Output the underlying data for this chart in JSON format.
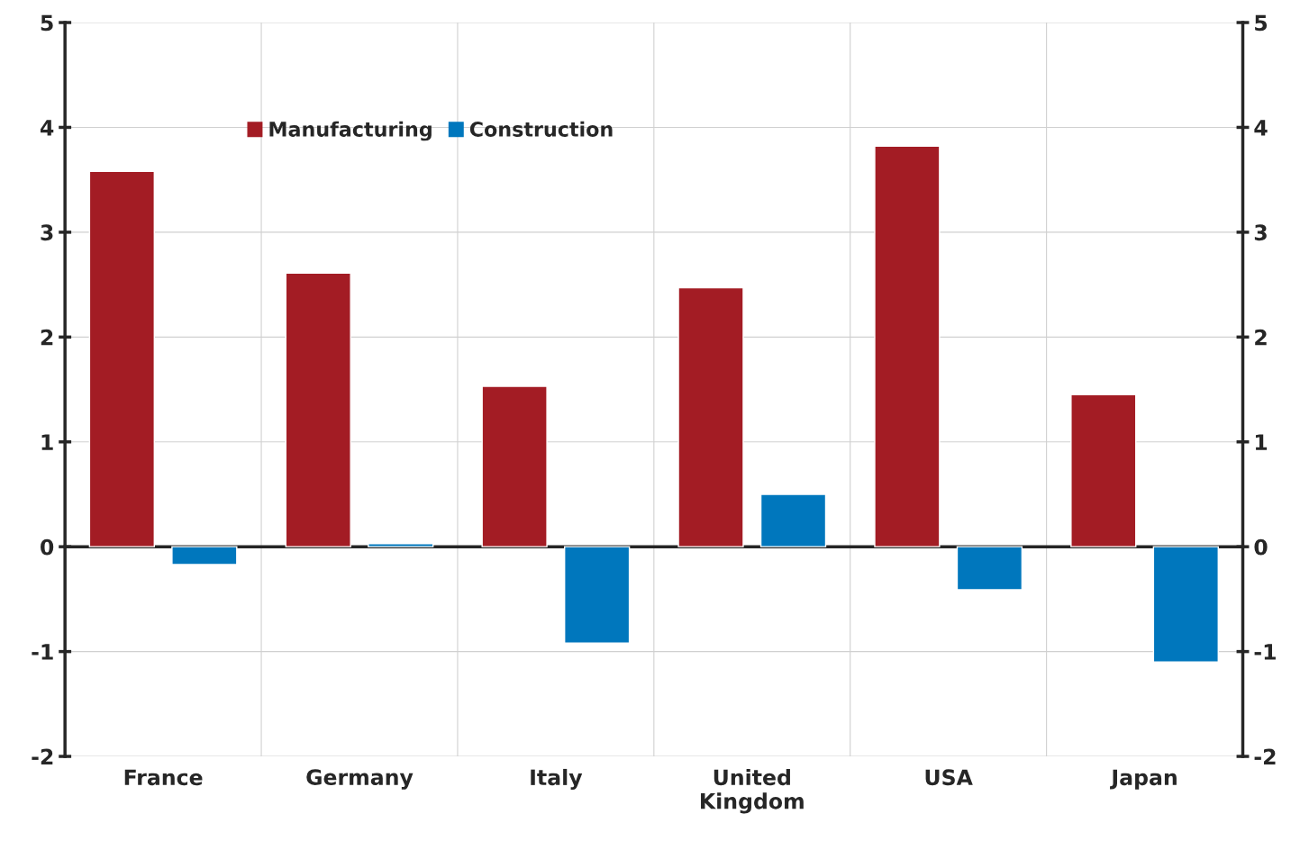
{
  "chart_data": {
    "type": "bar",
    "categories": [
      "France",
      "Germany",
      "Italy",
      "United\nKingdom",
      "USA",
      "Japan"
    ],
    "series": [
      {
        "name": "Manufacturing",
        "color": "#a31c24",
        "values": [
          3.58,
          2.61,
          1.53,
          2.47,
          3.82,
          1.45
        ]
      },
      {
        "name": "Construction",
        "color": "#0077bd",
        "values": [
          -0.17,
          0.03,
          -0.92,
          0.5,
          -0.41,
          -1.1
        ]
      }
    ],
    "ylim": [
      -2,
      5
    ],
    "yticks": [
      -2,
      -1,
      0,
      1,
      2,
      3,
      4,
      5
    ],
    "y2lim": [
      -2,
      5
    ],
    "y2ticks": [
      -2,
      -1,
      0,
      1,
      2,
      3,
      4,
      5
    ],
    "grid": true,
    "legend": "top left"
  }
}
